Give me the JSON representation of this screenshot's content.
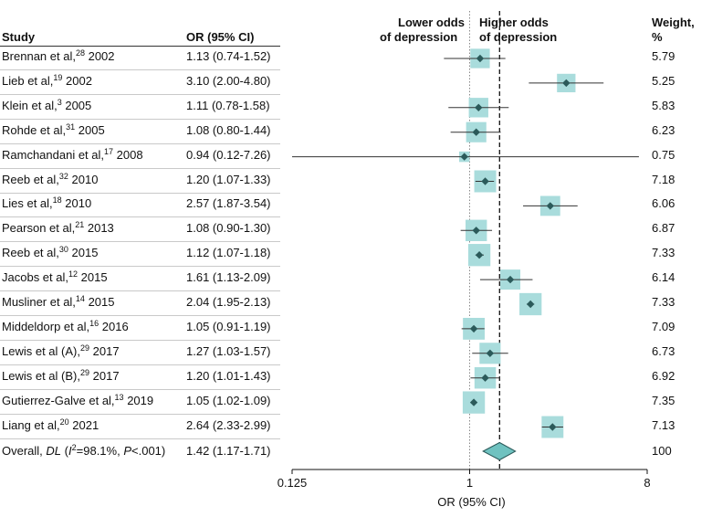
{
  "headers": {
    "study": "Study",
    "or_ci": "OR (95% CI)",
    "weight": "Weight,",
    "weight_unit": "%",
    "lower_line1": "Lower odds",
    "lower_line2": "of depression",
    "higher_line1": "Higher odds",
    "higher_line2": "of depression"
  },
  "chart_data": {
    "type": "forest",
    "scale": "log2",
    "xlabel": "OR (95% CI)",
    "xlim": [
      0.125,
      8
    ],
    "ticks": [
      {
        "value": 0.125,
        "label": "0.125"
      },
      {
        "value": 1,
        "label": "1"
      },
      {
        "value": 8,
        "label": "8"
      }
    ],
    "null_line": 1,
    "pooled_line": 1.42,
    "studies": [
      {
        "author": "Brennan et al,",
        "ref": "28",
        "year": "2002",
        "or": 1.13,
        "lo": 0.74,
        "hi": 1.52,
        "ci_text": "1.13 (0.74-1.52)",
        "weight": 5.79,
        "weight_text": "5.79"
      },
      {
        "author": "Lieb et al,",
        "ref": "19",
        "year": "2002",
        "or": 3.1,
        "lo": 2.0,
        "hi": 4.8,
        "ci_text": "3.10 (2.00-4.80)",
        "weight": 5.25,
        "weight_text": "5.25"
      },
      {
        "author": "Klein et al,",
        "ref": "3",
        "year": "2005",
        "or": 1.11,
        "lo": 0.78,
        "hi": 1.58,
        "ci_text": "1.11 (0.78-1.58)",
        "weight": 5.83,
        "weight_text": "5.83"
      },
      {
        "author": "Rohde et al,",
        "ref": "31",
        "year": "2005",
        "or": 1.08,
        "lo": 0.8,
        "hi": 1.44,
        "ci_text": "1.08 (0.80-1.44)",
        "weight": 6.23,
        "weight_text": "6.23"
      },
      {
        "author": "Ramchandani et al,",
        "ref": "17",
        "year": "2008",
        "or": 0.94,
        "lo": 0.12,
        "hi": 7.26,
        "ci_text": "0.94 (0.12-7.26)",
        "weight": 0.75,
        "weight_text": "0.75"
      },
      {
        "author": "Reeb et al,",
        "ref": "32",
        "year": "2010",
        "or": 1.2,
        "lo": 1.07,
        "hi": 1.33,
        "ci_text": "1.20 (1.07-1.33)",
        "weight": 7.18,
        "weight_text": "7.18"
      },
      {
        "author": "Lies et al,",
        "ref": "18",
        "year": "2010",
        "or": 2.57,
        "lo": 1.87,
        "hi": 3.54,
        "ci_text": "2.57 (1.87-3.54)",
        "weight": 6.06,
        "weight_text": "6.06"
      },
      {
        "author": "Pearson et al,",
        "ref": "21",
        "year": "2013",
        "or": 1.08,
        "lo": 0.9,
        "hi": 1.3,
        "ci_text": "1.08 (0.90-1.30)",
        "weight": 6.87,
        "weight_text": "6.87"
      },
      {
        "author": "Reeb et al,",
        "ref": "30",
        "year": "2015",
        "or": 1.12,
        "lo": 1.07,
        "hi": 1.18,
        "ci_text": "1.12 (1.07-1.18)",
        "weight": 7.33,
        "weight_text": "7.33"
      },
      {
        "author": "Jacobs et al,",
        "ref": "12",
        "year": "2015",
        "or": 1.61,
        "lo": 1.13,
        "hi": 2.09,
        "ci_text": "1.61 (1.13-2.09)",
        "weight": 6.14,
        "weight_text": "6.14"
      },
      {
        "author": "Musliner et al,",
        "ref": "14",
        "year": "2015",
        "or": 2.04,
        "lo": 1.95,
        "hi": 2.13,
        "ci_text": "2.04 (1.95-2.13)",
        "weight": 7.33,
        "weight_text": "7.33"
      },
      {
        "author": "Middeldorp et al,",
        "ref": "16",
        "year": "2016",
        "or": 1.05,
        "lo": 0.91,
        "hi": 1.19,
        "ci_text": "1.05 (0.91-1.19)",
        "weight": 7.09,
        "weight_text": "7.09"
      },
      {
        "author": "Lewis et al (A),",
        "ref": "29",
        "year": "2017",
        "or": 1.27,
        "lo": 1.03,
        "hi": 1.57,
        "ci_text": "1.27 (1.03-1.57)",
        "weight": 6.73,
        "weight_text": "6.73"
      },
      {
        "author": "Lewis et al (B),",
        "ref": "29",
        "year": "2017",
        "or": 1.2,
        "lo": 1.01,
        "hi": 1.43,
        "ci_text": "1.20 (1.01-1.43)",
        "weight": 6.92,
        "weight_text": "6.92"
      },
      {
        "author": "Gutierrez-Galve et al,",
        "ref": "13",
        "year": "2019",
        "or": 1.05,
        "lo": 1.02,
        "hi": 1.09,
        "ci_text": "1.05 (1.02-1.09)",
        "weight": 7.35,
        "weight_text": "7.35"
      },
      {
        "author": "Liang et al,",
        "ref": "20",
        "year": "2021",
        "or": 2.64,
        "lo": 2.33,
        "hi": 2.99,
        "ci_text": "2.64 (2.33-2.99)",
        "weight": 7.13,
        "weight_text": "7.13"
      }
    ],
    "overall": {
      "label_prefix": "Overall,",
      "method": "DL",
      "i2_sym": "I",
      "i2_exp": "2",
      "stats": "=98.1%,",
      "p_sym": "P",
      "p_val": "<.001)",
      "or": 1.42,
      "lo": 1.17,
      "hi": 1.71,
      "ci_text": "1.42 (1.17-1.71)",
      "weight_text": "100"
    },
    "colors": {
      "box": "#a9dcdc",
      "point": "#2b5a5a",
      "diamond": "#6fc2c0",
      "diamond_stroke": "#2b5a5a",
      "ci_line": "#333333"
    }
  }
}
